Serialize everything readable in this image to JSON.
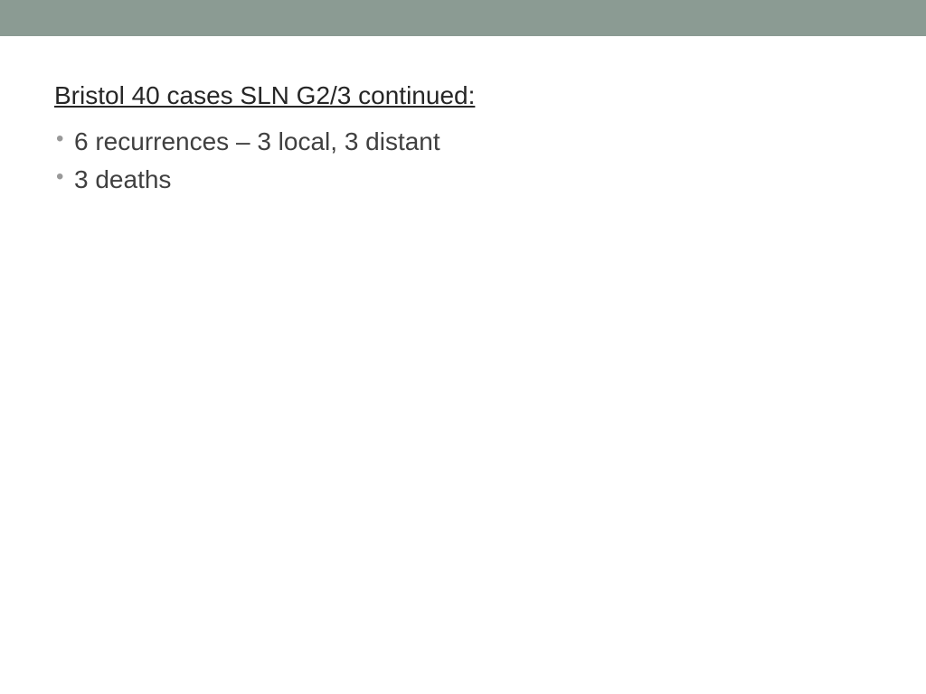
{
  "slide": {
    "header_bar_color": "#8b9b93",
    "background_color": "#ffffff",
    "title": "Bristol 40 cases SLN G2/3 continued:",
    "title_color": "#262626",
    "title_fontsize": 28,
    "bullets": [
      "6 recurrences – 3 local, 3 distant",
      "3 deaths"
    ],
    "bullet_text_color": "#404040",
    "bullet_marker_color": "#999999",
    "bullet_fontsize": 28
  }
}
